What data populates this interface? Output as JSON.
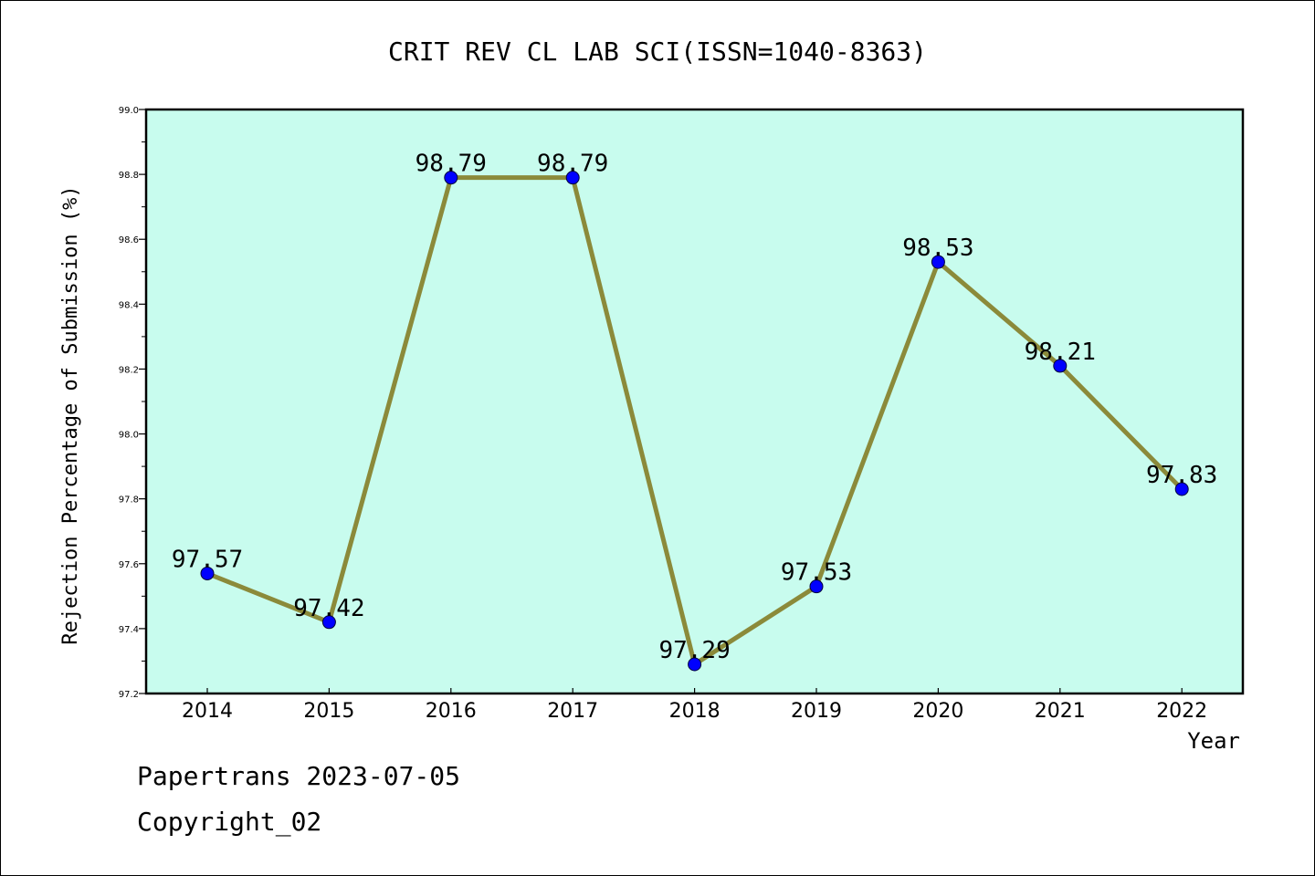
{
  "chart_data": {
    "type": "line",
    "title": "CRIT REV CL LAB SCI(ISSN=1040-8363)",
    "xlabel": "Year",
    "ylabel": "Rejection Percentage of Submission (%)",
    "categories": [
      "2014",
      "2015",
      "2016",
      "2017",
      "2018",
      "2019",
      "2020",
      "2021",
      "2022"
    ],
    "series": [
      {
        "values": [
          97.57,
          97.42,
          98.79,
          98.79,
          97.29,
          97.53,
          98.53,
          98.21,
          97.83
        ],
        "labels": [
          "97.57",
          "97.42",
          "98.79",
          "98.79",
          "97.29",
          "97.53",
          "98.53",
          "98.21",
          "97.83"
        ]
      }
    ],
    "ylim": [
      97.2,
      99.0
    ],
    "yticks": [
      97.2,
      97.4,
      97.6,
      97.8,
      98.0,
      98.2,
      98.4,
      98.6,
      98.8,
      99.0
    ],
    "ytick_labels": [
      "97.2",
      "97.4",
      "97.6",
      "97.8",
      "98.0",
      "98.2",
      "98.4",
      "98.6",
      "98.8",
      "99.0"
    ],
    "grid": false,
    "colors": {
      "plot_background": "#c8fcee",
      "line": "#8b8a3a",
      "marker": "#0000ff"
    }
  },
  "footer": {
    "line1": "Papertrans 2023-07-05",
    "line2": "Copyright_02"
  }
}
